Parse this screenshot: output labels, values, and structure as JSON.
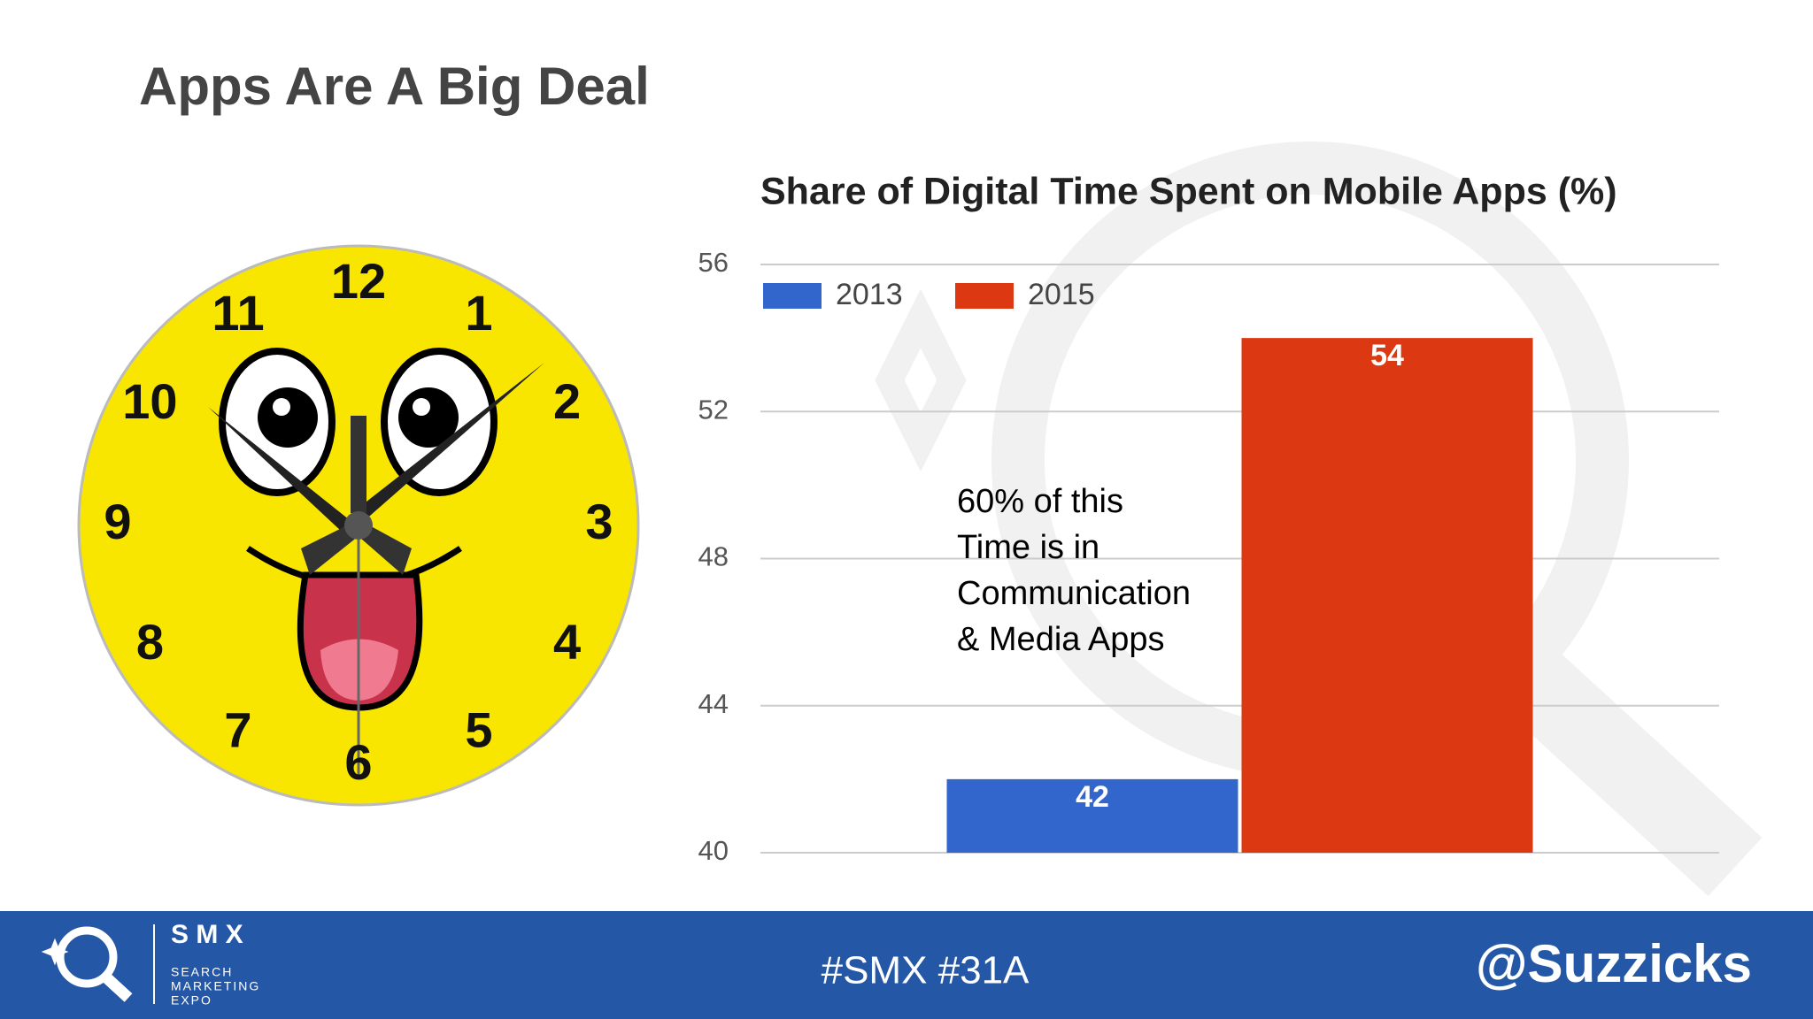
{
  "slide": {
    "title": "Apps Are A Big Deal",
    "hashtag": "#SMX #31A",
    "handle": "@Suzzicks",
    "logo": {
      "name": "S M X",
      "lines": [
        "SEARCH",
        "MARKETING",
        "EXPO"
      ]
    }
  },
  "clock": {
    "numerals": [
      "12",
      "1",
      "2",
      "3",
      "4",
      "5",
      "6",
      "7",
      "8",
      "9",
      "10",
      "11"
    ]
  },
  "chart_data": {
    "type": "bar",
    "title": "Share of Digital Time Spent on Mobile Apps (%)",
    "categories": [
      null
    ],
    "series": [
      {
        "name": "2013",
        "color": "#3366cc",
        "values": [
          42
        ]
      },
      {
        "name": "2015",
        "color": "#dc3912",
        "values": [
          54
        ]
      }
    ],
    "ylim": [
      40,
      56
    ],
    "yticks": [
      40,
      44,
      48,
      52,
      56
    ],
    "grid": true,
    "legend": "top-left",
    "annotation": [
      "60% of this",
      "Time is in",
      "Communication",
      "& Media Apps"
    ]
  }
}
